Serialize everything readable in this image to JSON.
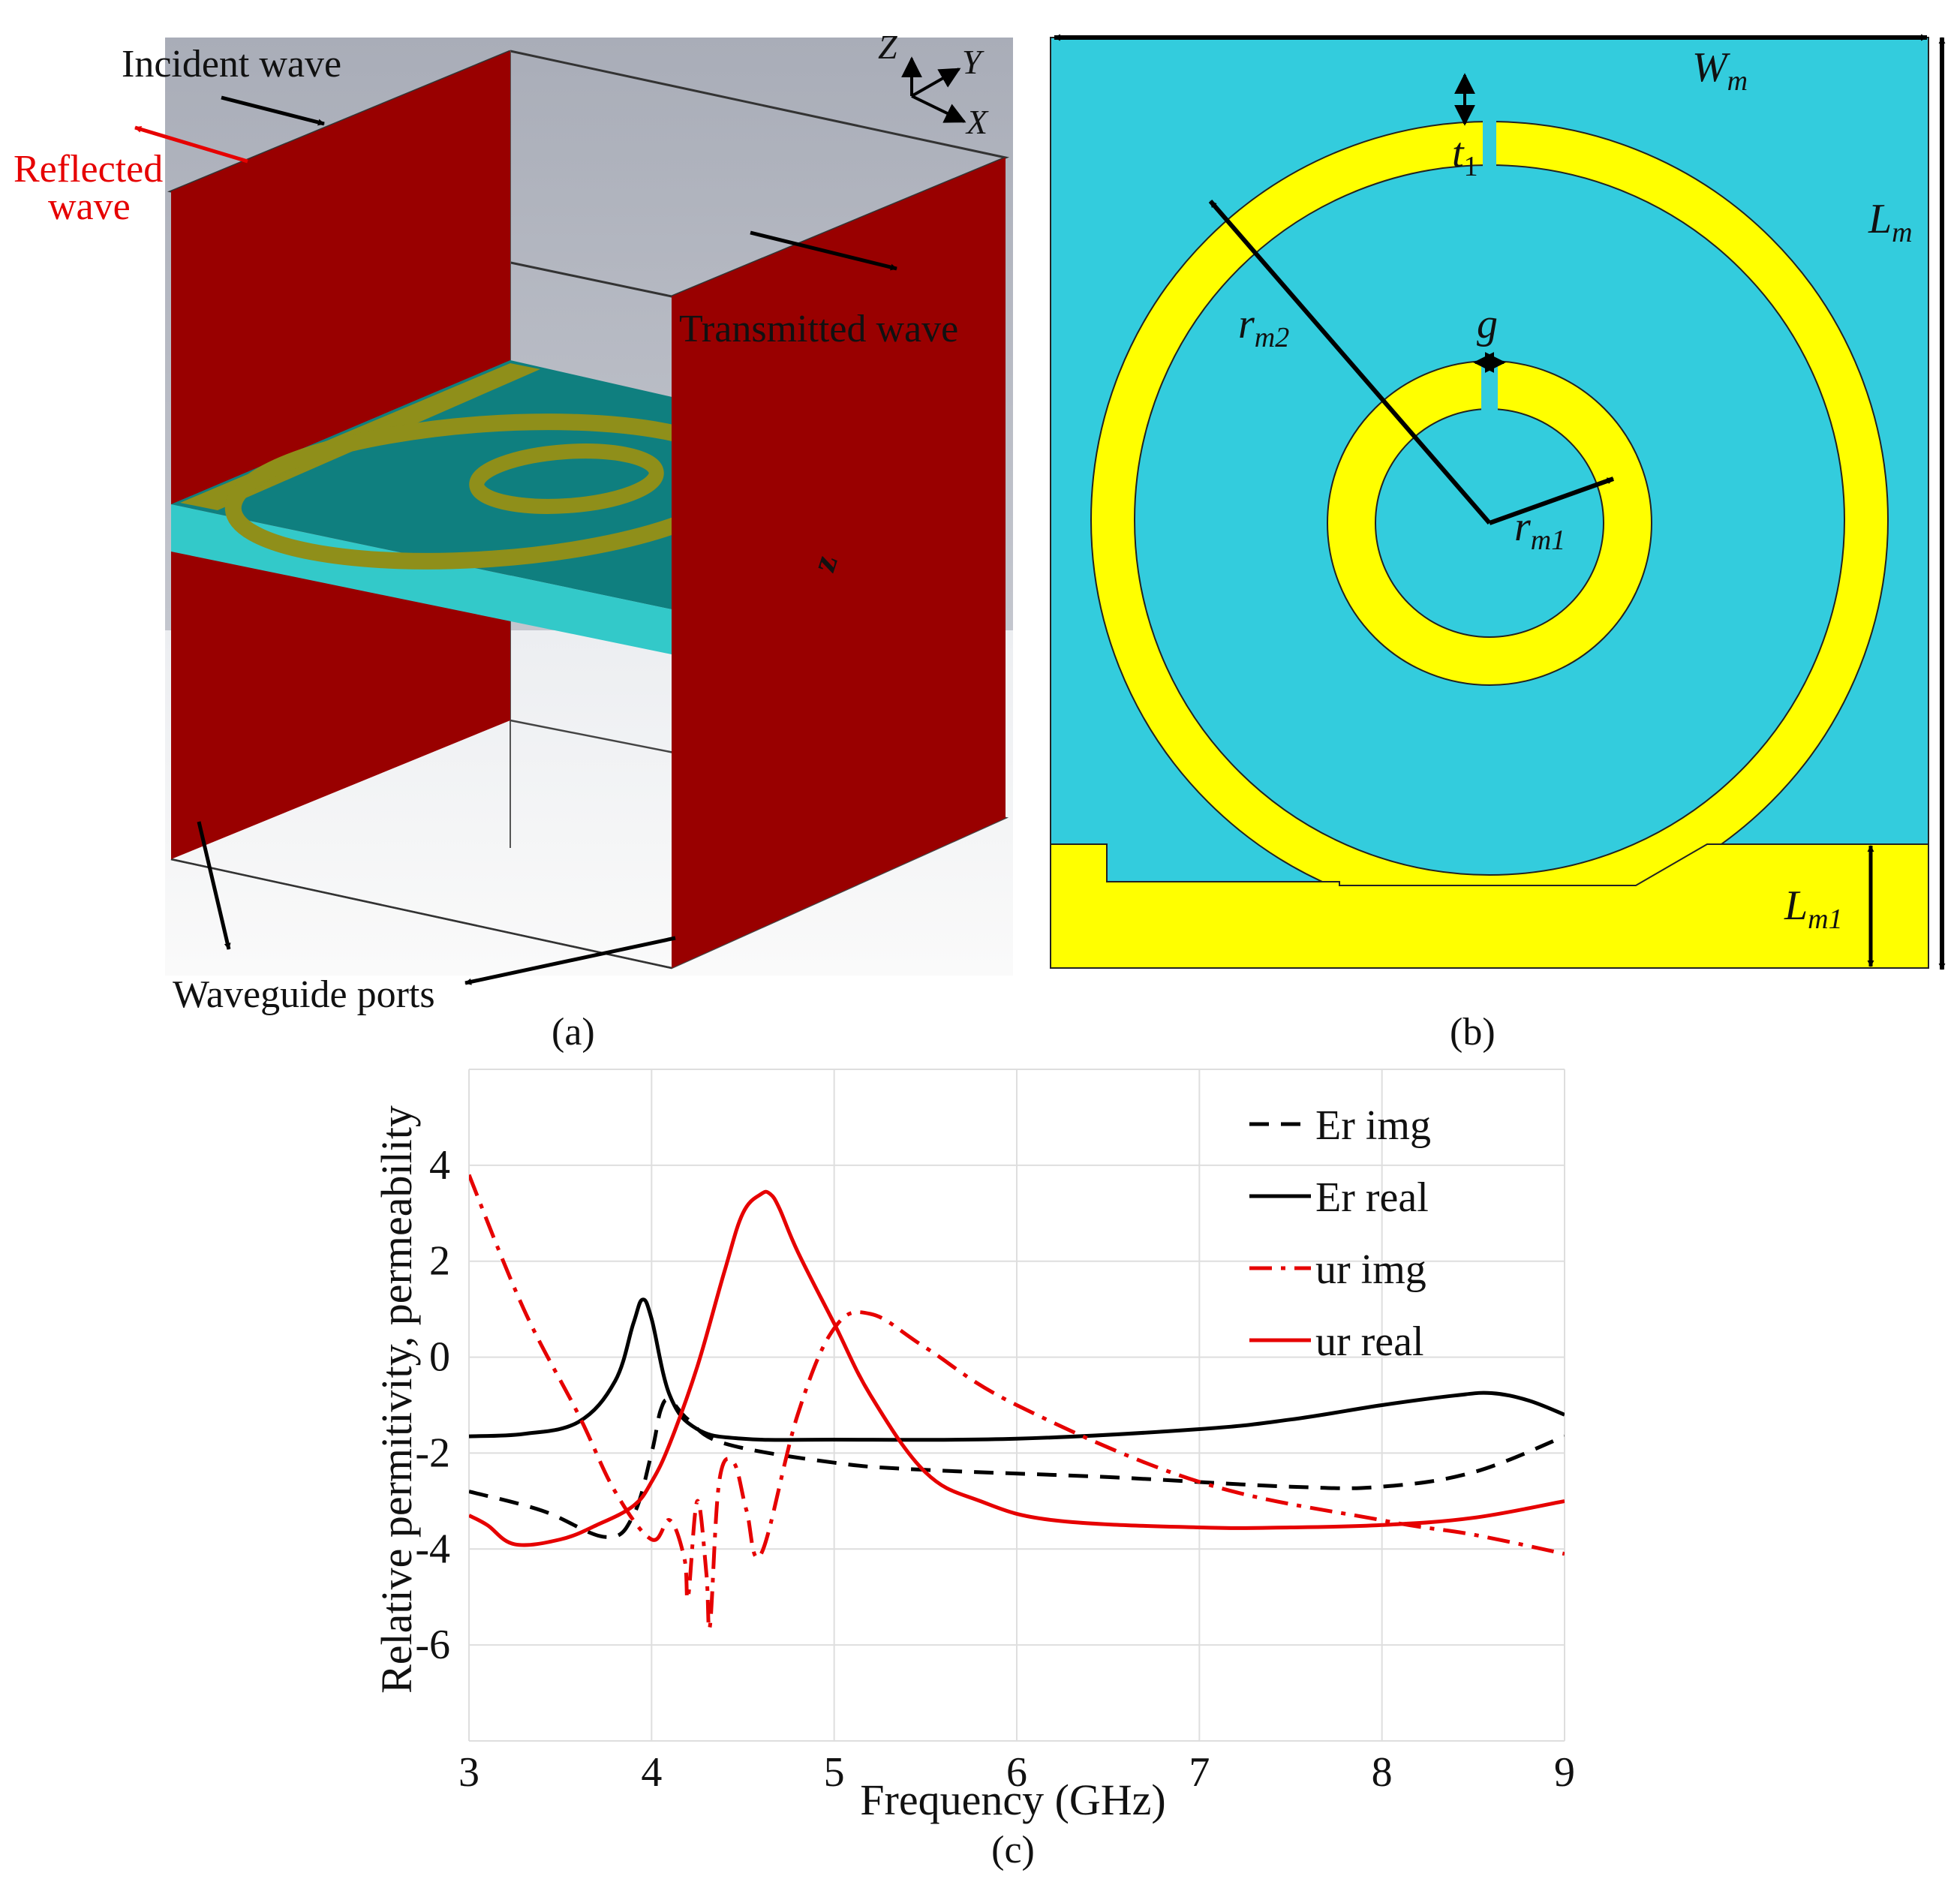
{
  "panel_a": {
    "caption": "(a)",
    "incident_label": "Incident wave",
    "reflected_label_line1": "Reflected",
    "reflected_label_line2": "wave",
    "transmitted_label": "Transmitted wave",
    "ports_label": "Waveguide ports",
    "axis_z": "Z",
    "axis_y": "Y",
    "axis_x": "X",
    "z_marker": "z",
    "colors": {
      "wall": "#990000",
      "substrate": "#33c9c9",
      "metal": "#8f8f1a",
      "box_grey": "#b8bcc6",
      "reflected": "#e60000"
    }
  },
  "panel_b": {
    "caption": "(b)",
    "wm_main": "W",
    "wm_sub": "m",
    "lm_main": "L",
    "lm_sub": "m",
    "t1_main": "t",
    "t1_sub": "1",
    "g_label": "g",
    "rm2_main": "r",
    "rm2_sub": "m2",
    "rm1_main": "r",
    "rm1_sub": "m1",
    "lm1_main": "L",
    "lm1_sub": "m1",
    "colors": {
      "substrate": "#33ccdd",
      "metal": "#ffff00"
    }
  },
  "chart_data": {
    "type": "line",
    "caption": "(c)",
    "xlabel": "Frequency (GHz)",
    "ylabel": "Relative permitivity, permeability",
    "xlim": [
      3,
      9
    ],
    "ylim": [
      -8,
      6
    ],
    "xticks": [
      "3",
      "4",
      "5",
      "6",
      "7",
      "8",
      "9"
    ],
    "yticks": [
      "4",
      "2",
      "0",
      "-2",
      "-4",
      "-6"
    ],
    "grid": true,
    "legend_position": "top-right",
    "series": [
      {
        "name": "Er img",
        "color": "#000000",
        "dash": "dashed",
        "x": [
          3.0,
          3.4,
          3.75,
          3.9,
          4.0,
          4.05,
          4.1,
          4.2,
          4.4,
          5.0,
          5.5,
          6.5,
          7.5,
          8.0,
          8.5,
          9.0
        ],
        "y": [
          -2.8,
          -3.2,
          -3.75,
          -3.3,
          -2.0,
          -1.1,
          -0.9,
          -1.3,
          -1.8,
          -2.2,
          -2.35,
          -2.5,
          -2.7,
          -2.7,
          -2.4,
          -1.65
        ]
      },
      {
        "name": "Er real",
        "color": "#000000",
        "dash": "solid",
        "x": [
          3.0,
          3.3,
          3.6,
          3.8,
          3.9,
          3.95,
          4.0,
          4.1,
          4.25,
          4.5,
          5.0,
          6.0,
          7.0,
          7.5,
          8.0,
          8.4,
          8.6,
          8.8,
          9.0
        ],
        "y": [
          -1.65,
          -1.6,
          -1.35,
          -0.5,
          0.7,
          1.2,
          0.8,
          -0.8,
          -1.5,
          -1.7,
          -1.72,
          -1.7,
          -1.5,
          -1.3,
          -1.0,
          -0.8,
          -0.75,
          -0.9,
          -1.2
        ]
      },
      {
        "name": "ur img",
        "color": "#e60000",
        "dash": "dashdot",
        "x": [
          3.0,
          3.3,
          3.6,
          3.8,
          4.0,
          4.1,
          4.18,
          4.2,
          4.25,
          4.3,
          4.32,
          4.37,
          4.45,
          4.52,
          4.6,
          4.8,
          5.0,
          5.2,
          5.5,
          6.0,
          7.0,
          8.0,
          8.5,
          9.0
        ],
        "y": [
          3.8,
          1.0,
          -1.2,
          -2.8,
          -3.8,
          -3.4,
          -4.2,
          -5.0,
          -3.0,
          -4.5,
          -5.6,
          -2.6,
          -2.2,
          -3.2,
          -4.1,
          -1.2,
          0.6,
          0.9,
          0.2,
          -1.0,
          -2.6,
          -3.4,
          -3.7,
          -4.1
        ]
      },
      {
        "name": "ur real",
        "color": "#e60000",
        "dash": "solid",
        "x": [
          3.0,
          3.1,
          3.25,
          3.5,
          3.7,
          3.9,
          4.0,
          4.1,
          4.25,
          4.4,
          4.5,
          4.6,
          4.65,
          4.7,
          4.8,
          5.0,
          5.2,
          5.5,
          5.8,
          6.2,
          7.0,
          7.5,
          8.0,
          8.5,
          9.0
        ],
        "y": [
          -3.3,
          -3.5,
          -3.9,
          -3.8,
          -3.5,
          -3.1,
          -2.6,
          -1.8,
          -0.2,
          1.8,
          3.0,
          3.4,
          3.4,
          3.1,
          2.2,
          0.7,
          -0.8,
          -2.4,
          -3.0,
          -3.4,
          -3.55,
          -3.55,
          -3.5,
          -3.35,
          -3.0
        ]
      }
    ]
  }
}
